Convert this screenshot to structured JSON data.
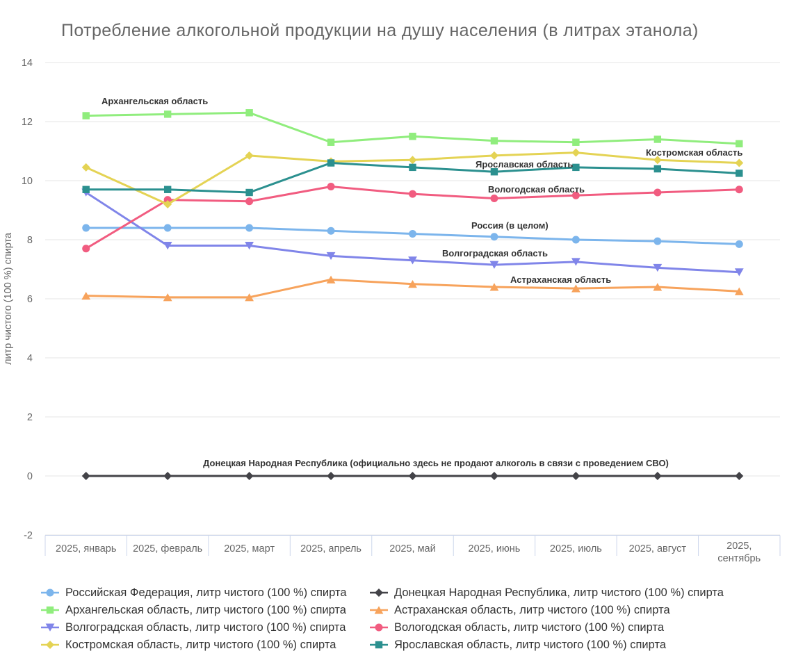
{
  "chart_data": {
    "type": "line",
    "title": "Потребление алкогольной продукции на душу населения (в литрах этанола)",
    "xlabel": "",
    "ylabel": "литр чистого (100 %) спирта",
    "ylim": [
      -2,
      14
    ],
    "yticks": [
      -2,
      0,
      2,
      4,
      6,
      8,
      10,
      12,
      14
    ],
    "grid": true,
    "legend_position": "bottom",
    "categories": [
      "2025, январь",
      "2025, февраль",
      "2025, март",
      "2025, апрель",
      "2025, май",
      "2025, июнь",
      "2025, июль",
      "2025, август",
      "2025, сентябрь"
    ],
    "series": [
      {
        "name": "Российская Федерация, литр чистого (100 %) спирта",
        "color": "#7cb5ec",
        "marker": "circle",
        "values": [
          8.4,
          8.4,
          8.4,
          8.3,
          8.2,
          8.1,
          8.0,
          7.95,
          7.85
        ],
        "label": {
          "text": "Россия (в целом)",
          "x": 678,
          "y": 329,
          "anchor": "start"
        }
      },
      {
        "name": "Донецкая Народная Республика, литр чистого (100 %) спирта",
        "color": "#434348",
        "marker": "diamond",
        "values": [
          0,
          0,
          0,
          0,
          0,
          0,
          0,
          0,
          0
        ],
        "label": {
          "text": "Донецкая Народная Республика (официально здесь не продают алкоголь в связи с проведением СВО)",
          "x": 627,
          "y": 671,
          "anchor": "middle"
        }
      },
      {
        "name": "Архангельская область, литр чистого (100 %) спирта",
        "color": "#90ed7d",
        "marker": "square",
        "values": [
          12.2,
          12.25,
          12.3,
          11.3,
          11.5,
          11.35,
          11.3,
          11.4,
          11.25
        ],
        "label": {
          "text": "Архангельская область",
          "x": 146,
          "y": 150,
          "anchor": "start"
        }
      },
      {
        "name": "Астраханская область, литр чистого (100 %) спирта",
        "color": "#f7a35c",
        "marker": "triangle",
        "values": [
          6.1,
          6.05,
          6.05,
          6.65,
          6.5,
          6.4,
          6.35,
          6.4,
          6.25
        ],
        "label": {
          "text": "Астраханская область",
          "x": 734,
          "y": 407,
          "anchor": "start"
        }
      },
      {
        "name": "Волгоградская область, литр чистого (100 %) спирта",
        "color": "#8085e9",
        "marker": "triangle-down",
        "values": [
          9.6,
          7.8,
          7.8,
          7.45,
          7.3,
          7.15,
          7.25,
          7.05,
          6.9
        ],
        "label": {
          "text": "Волгоградская область",
          "x": 636,
          "y": 369,
          "anchor": "start"
        }
      },
      {
        "name": "Вологодская область, литр чистого (100 %) спирта",
        "color": "#f15c80",
        "marker": "circle",
        "values": [
          7.7,
          9.35,
          9.3,
          9.8,
          9.55,
          9.4,
          9.5,
          9.6,
          9.7
        ],
        "label": {
          "text": "Вологодская область",
          "x": 702,
          "y": 277,
          "anchor": "start"
        }
      },
      {
        "name": "Костромская область, литр чистого (100 %) спирта",
        "color": "#e4d354",
        "marker": "diamond",
        "values": [
          10.45,
          9.2,
          10.85,
          10.65,
          10.7,
          10.85,
          10.95,
          10.7,
          10.6
        ],
        "label": {
          "text": "Костромская область",
          "x": 929,
          "y": 224,
          "anchor": "start"
        }
      },
      {
        "name": "Ярославская область, литр чистого (100 %) спирта",
        "color": "#2b908f",
        "marker": "square",
        "values": [
          9.7,
          9.7,
          9.6,
          10.6,
          10.45,
          10.3,
          10.45,
          10.4,
          10.25
        ],
        "label": {
          "text": "Ярославская область",
          "x": 684,
          "y": 241,
          "anchor": "start"
        }
      }
    ]
  }
}
